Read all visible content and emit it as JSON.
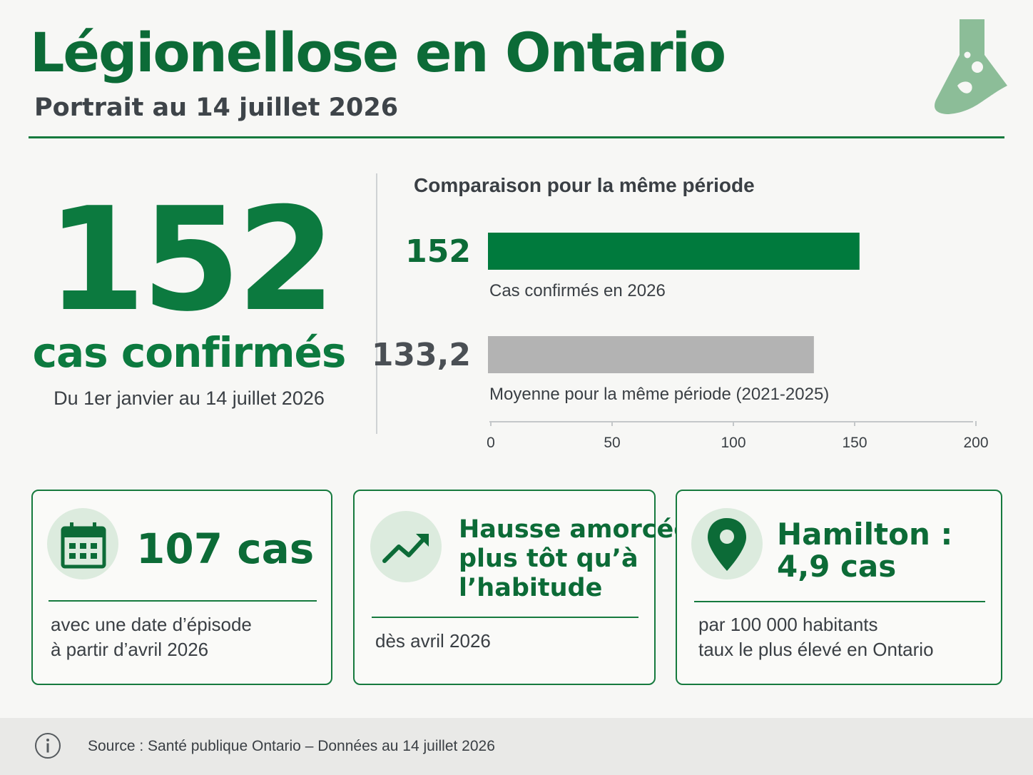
{
  "header": {
    "title": "Légionellose en Ontario",
    "subtitle": "Portrait au 14 juillet 2026"
  },
  "logo": {
    "icon": "flask-icon",
    "color": "#8cbd98"
  },
  "headline": {
    "number": "152",
    "label": "cas confirmés",
    "period": "Du 1er janvier au 14 juillet 2026"
  },
  "chart_data": {
    "type": "bar",
    "orientation": "horizontal",
    "title": "Comparaison pour la même période",
    "categories": [
      "Cas confirmés en 2026",
      "Moyenne pour la même période (2021-2025)"
    ],
    "values": [
      152,
      133.2
    ],
    "value_labels": [
      "152",
      "133,2"
    ],
    "colors": [
      "#007a3d",
      "#b3b3b3"
    ],
    "value_label_colors": [
      "#0c6b37",
      "#4a4f54"
    ],
    "xlim": [
      0,
      200
    ],
    "xticks": [
      0,
      50,
      100,
      150,
      200
    ],
    "grid": false,
    "legend": "none"
  },
  "cards": [
    {
      "icon": "calendar-icon",
      "headline": "107 cas",
      "text_lines": [
        "avec une date d’épisode",
        "à partir d’avril 2026"
      ]
    },
    {
      "icon": "trending-up-icon",
      "headline_lines": [
        "Hausse amorcée",
        "plus tôt qu’à",
        "l’habitude"
      ],
      "text_lines": [
        "dès avril 2026"
      ]
    },
    {
      "icon": "map-pin-icon",
      "headline_lines": [
        "Hamilton :",
        "4,9 cas"
      ],
      "text_lines": [
        "par 100 000 habitants",
        "taux le plus élevé en Ontario"
      ]
    }
  ],
  "footer": {
    "icon": "info-icon",
    "source": "Source : Santé publique Ontario – Données au 14 juillet 2026"
  }
}
